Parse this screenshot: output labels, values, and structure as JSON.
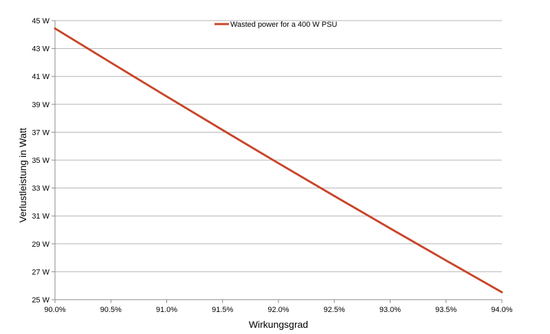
{
  "chart_data": {
    "type": "line",
    "xlabel": "Wirkungsgrad",
    "ylabel": "Verlustleistung in Watt",
    "x_ticks": [
      "90.0%",
      "90.5%",
      "91.0%",
      "91.5%",
      "92.0%",
      "92.5%",
      "93.0%",
      "93.5%",
      "94.0%"
    ],
    "y_ticks": [
      "25 W",
      "27 W",
      "29 W",
      "31 W",
      "33 W",
      "35 W",
      "37 W",
      "39 W",
      "41 W",
      "43 W",
      "45 W"
    ],
    "xlim": [
      90.0,
      94.0
    ],
    "ylim": [
      25,
      45
    ],
    "grid": "horizontal",
    "legend_position": "top-center",
    "series": [
      {
        "name": "Wasted power for a 400 W PSU",
        "color": "#c8462a",
        "x": [
          90.0,
          90.5,
          91.0,
          91.5,
          92.0,
          92.5,
          93.0,
          93.5,
          94.0
        ],
        "y": [
          44.44,
          41.99,
          39.56,
          37.16,
          34.78,
          32.43,
          30.11,
          27.81,
          25.53
        ]
      }
    ]
  }
}
